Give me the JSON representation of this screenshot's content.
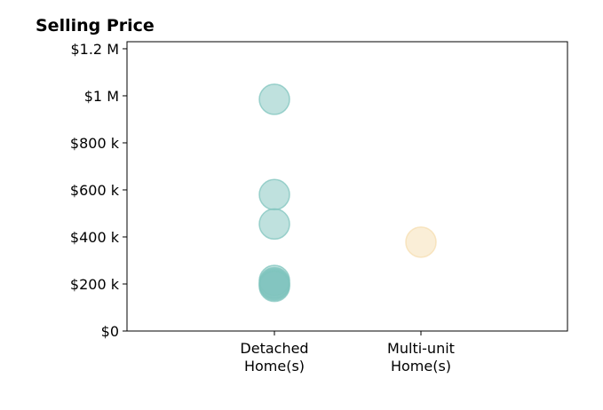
{
  "chart_data": {
    "type": "scatter",
    "title": "Selling Price",
    "xlabel": "",
    "ylabel": "",
    "categories": [
      [
        "Detached",
        "Home(s)"
      ],
      [
        "Multi-unit",
        "Home(s)"
      ]
    ],
    "ylim": [
      0,
      1230000
    ],
    "yticks": [
      {
        "value": 0,
        "label": "$0"
      },
      {
        "value": 200000,
        "label": "$200 k"
      },
      {
        "value": 400000,
        "label": "$400 k"
      },
      {
        "value": 600000,
        "label": "$600 k"
      },
      {
        "value": 800000,
        "label": "$800 k"
      },
      {
        "value": 1000000,
        "label": "$1 M"
      },
      {
        "value": 1200000,
        "label": "$1.2 M"
      }
    ],
    "grid": false,
    "series": [
      {
        "category_index": 0,
        "color": "#7fc4bd",
        "values": [
          985000,
          580000,
          455000,
          215000,
          205000,
          200000,
          195000,
          190000
        ]
      },
      {
        "category_index": 1,
        "color": "#f5deb0",
        "values": [
          378000
        ]
      }
    ]
  }
}
